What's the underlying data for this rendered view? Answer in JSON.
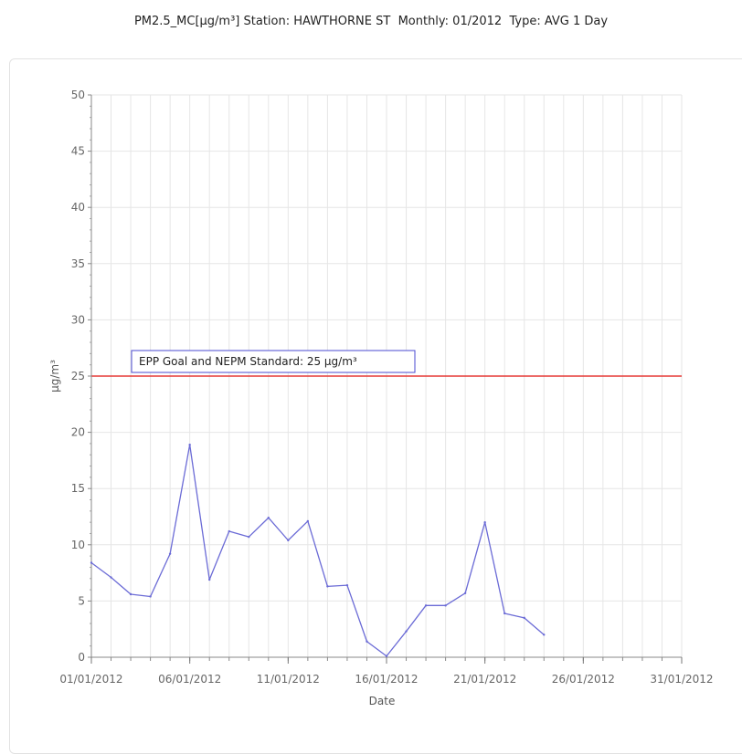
{
  "chart_data": {
    "type": "line",
    "title": "PM2.5_MC[µg/m³] Station: HAWTHORNE ST  Monthly: 01/2012  Type: AVG 1 Day",
    "xlabel": "Date",
    "ylabel": "µg/m³",
    "xlim": [
      "01/01/2012",
      "31/01/2012"
    ],
    "ylim": [
      0,
      50
    ],
    "x_ticks": [
      "01/01/2012",
      "06/01/2012",
      "11/01/2012",
      "16/01/2012",
      "21/01/2012",
      "26/01/2012",
      "31/01/2012"
    ],
    "y_ticks": [
      0,
      5,
      10,
      15,
      20,
      25,
      30,
      35,
      40,
      45,
      50
    ],
    "grid": true,
    "series": [
      {
        "color": "#6b6bd6",
        "x": [
          "01/01/2012",
          "02/01/2012",
          "03/01/2012",
          "04/01/2012",
          "05/01/2012",
          "06/01/2012",
          "07/01/2012",
          "08/01/2012",
          "09/01/2012",
          "10/01/2012",
          "11/01/2012",
          "12/01/2012",
          "13/01/2012",
          "14/01/2012",
          "15/01/2012",
          "16/01/2012",
          "17/01/2012",
          "18/01/2012",
          "19/01/2012",
          "20/01/2012",
          "21/01/2012",
          "22/01/2012",
          "23/01/2012",
          "24/01/2012"
        ],
        "values": [
          8.4,
          7.1,
          5.6,
          5.4,
          9.2,
          18.9,
          6.9,
          11.2,
          10.7,
          12.4,
          10.4,
          12.1,
          6.3,
          6.4,
          1.4,
          0.1,
          2.3,
          4.6,
          4.6,
          5.7,
          12.0,
          3.9,
          3.5,
          2.0
        ]
      }
    ],
    "reference_line": {
      "value": 25,
      "label": "EPP Goal and NEPM Standard: 25 µg/m³",
      "color": "#e53935"
    }
  }
}
